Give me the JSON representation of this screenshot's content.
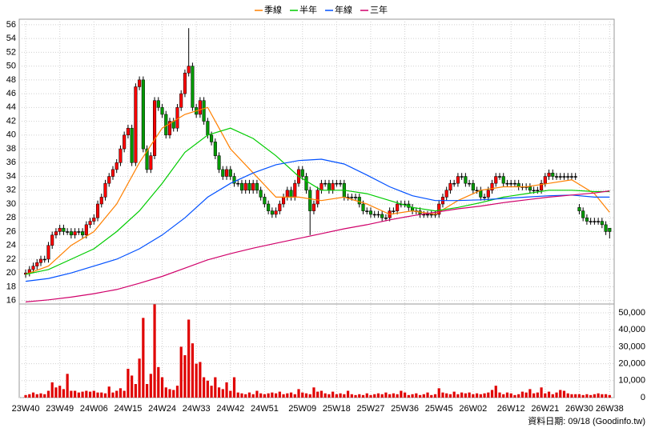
{
  "chart_data": {
    "type": "candlestick",
    "x": [
      0,
      1,
      2,
      3,
      4,
      5,
      6,
      7,
      8,
      9,
      10,
      11,
      12,
      13,
      14,
      15,
      16,
      17,
      18,
      19,
      20,
      21,
      22,
      23,
      24,
      25,
      26,
      27,
      28,
      29,
      30,
      31,
      32,
      33,
      34,
      35,
      36,
      37,
      38,
      39,
      40,
      41,
      42,
      43,
      44,
      45,
      46,
      47,
      48,
      49,
      50,
      51,
      52,
      53,
      54,
      55,
      56,
      57,
      58,
      59,
      60,
      61,
      62,
      63,
      64,
      65,
      66,
      67,
      68,
      69,
      70,
      71,
      72,
      73,
      74,
      75,
      76,
      77,
      78,
      79,
      80,
      81,
      82,
      83,
      84,
      85,
      86,
      87,
      88,
      89,
      90,
      91,
      92,
      93,
      94,
      95,
      96,
      97,
      98,
      99,
      100,
      101,
      102,
      103,
      104,
      105,
      106,
      107,
      108,
      109,
      110,
      111,
      112,
      113,
      114,
      115,
      116,
      117,
      118,
      119,
      120,
      121,
      122,
      123,
      124,
      125,
      126,
      127,
      128,
      129,
      130,
      131,
      132,
      133,
      134,
      135,
      136,
      137,
      138,
      139,
      140,
      141,
      142,
      143,
      144,
      145,
      146,
      147,
      148,
      149,
      150,
      151,
      152,
      153,
      154
    ],
    "open": [
      19.8,
      20,
      20.5,
      21,
      21.5,
      22,
      22,
      24,
      25.5,
      26,
      26.5,
      26,
      26,
      25.5,
      26,
      26,
      25.5,
      27,
      27.5,
      28,
      30,
      31,
      33,
      34,
      35,
      36,
      38,
      40,
      41,
      36,
      47,
      48,
      38,
      35,
      37,
      45,
      44,
      43,
      40,
      42,
      41,
      44,
      46,
      49,
      50,
      44,
      43,
      45,
      42,
      40,
      39,
      37,
      35,
      34,
      35,
      34,
      33,
      33,
      32,
      33,
      32,
      33,
      32,
      31,
      30,
      29,
      28.5,
      29,
      30,
      31,
      32,
      31,
      33,
      35,
      34,
      32,
      29,
      30,
      32,
      33,
      33,
      32,
      33,
      33,
      33,
      31,
      31,
      31,
      31,
      30,
      29,
      29,
      28.5,
      28.5,
      28.5,
      28,
      28,
      29,
      29,
      30,
      30,
      30,
      29.5,
      29,
      29,
      28.5,
      28.5,
      28.5,
      28.5,
      28.5,
      30,
      31,
      32,
      33,
      33,
      34,
      34,
      33,
      33,
      32,
      32,
      31,
      31,
      32,
      33,
      34,
      34,
      33,
      33,
      33,
      33,
      32.5,
      32.5,
      32.5,
      32,
      32,
      32,
      33,
      34,
      34.5,
      34,
      34,
      34,
      34,
      34,
      34,
      29.5,
      29,
      28,
      27.5,
      27.5,
      27.5,
      27.5,
      27,
      26.5
    ],
    "high": [
      20.5,
      21,
      21.5,
      22,
      22.5,
      22.5,
      24.5,
      26,
      26.5,
      27,
      27,
      26.5,
      26.5,
      26.5,
      26.5,
      26.5,
      27.5,
      28,
      28.5,
      30.5,
      31.5,
      33.5,
      34.5,
      35.5,
      36.5,
      38.5,
      40.5,
      41.5,
      41.5,
      47.5,
      48.5,
      48.5,
      38.5,
      37.5,
      45.5,
      45.5,
      44.5,
      43.5,
      42.5,
      42.5,
      44.5,
      46.5,
      49.5,
      55.5,
      50.5,
      44.5,
      45.5,
      45.5,
      42.5,
      40.5,
      39.5,
      37.5,
      35.5,
      35.5,
      35.5,
      34.5,
      33.5,
      33.5,
      33.5,
      33.5,
      33.5,
      33.5,
      32.5,
      31.5,
      30.5,
      29.5,
      29.5,
      30.5,
      31.5,
      32.5,
      32.5,
      33.5,
      35.5,
      35.5,
      34.5,
      32.5,
      30.5,
      32.5,
      33.5,
      33.5,
      33.5,
      33.5,
      33.5,
      33.5,
      33.5,
      31.5,
      31.5,
      31.5,
      31.5,
      30.5,
      29.5,
      29.5,
      29,
      29,
      29,
      28.5,
      29.5,
      29.5,
      30.5,
      30.5,
      30.5,
      30.5,
      30,
      29.5,
      29.5,
      29,
      29,
      29,
      29,
      30.5,
      31.5,
      32.5,
      33.5,
      33.5,
      34.5,
      34.5,
      34.5,
      33.5,
      33.5,
      32.5,
      32.5,
      31.5,
      32.5,
      33.5,
      34.5,
      34.5,
      34.5,
      33.5,
      33.5,
      33.5,
      33.5,
      33,
      33,
      33,
      32.5,
      32.5,
      33.5,
      34.5,
      35,
      35,
      34.5,
      34.5,
      34.5,
      34.5,
      34.5,
      34.5,
      30,
      29.5,
      28.5,
      28,
      28,
      28,
      28,
      27.5,
      26.5
    ],
    "low": [
      19.3,
      19.5,
      20,
      20.5,
      21,
      21.5,
      21.5,
      23.5,
      25,
      25.5,
      25.5,
      25.5,
      25,
      25,
      25.5,
      25,
      25,
      26.5,
      27,
      27.5,
      29.5,
      30.5,
      32.5,
      33.5,
      34.5,
      35.5,
      37.5,
      39.5,
      35.5,
      35.5,
      46.5,
      37.5,
      34.5,
      34.5,
      36.5,
      43.5,
      42.5,
      39.5,
      39.5,
      40.5,
      40.5,
      43.5,
      45.5,
      48.5,
      43.5,
      42.5,
      42.5,
      41.5,
      39.5,
      38.5,
      36.5,
      34.5,
      33.5,
      33.5,
      33.5,
      32.5,
      32.5,
      31.5,
      31.5,
      31.5,
      31.5,
      31.5,
      30.5,
      29.5,
      28.5,
      28,
      28,
      28.5,
      29.5,
      30.5,
      30.5,
      30.5,
      32.5,
      33.5,
      31.5,
      25.5,
      28.5,
      29.5,
      31.5,
      32.5,
      31.5,
      31.5,
      32.5,
      32.5,
      30.5,
      30.5,
      30.5,
      30.5,
      29.5,
      28.5,
      28.5,
      28,
      28,
      28,
      27.5,
      27.5,
      27.5,
      28.5,
      28.5,
      29.5,
      29.5,
      29,
      28.5,
      28.5,
      28,
      28,
      28,
      28,
      28,
      28,
      29.5,
      30.5,
      31.5,
      32.5,
      32.5,
      33.5,
      32.5,
      32.5,
      31.5,
      31.5,
      30.5,
      30.5,
      30.5,
      31.5,
      32.5,
      33.5,
      32.5,
      32.5,
      32.5,
      32.5,
      32,
      32,
      32,
      31.5,
      31.5,
      31.5,
      31.5,
      32.5,
      33.5,
      33.5,
      33.5,
      33.5,
      33.5,
      33.5,
      33.5,
      33.5,
      28.5,
      27.5,
      27,
      27,
      27,
      27,
      26.5,
      25.5,
      25
    ],
    "close": [
      20,
      20.5,
      21,
      21.5,
      22,
      22,
      24,
      25.5,
      26,
      26.5,
      26,
      26,
      25.5,
      26,
      26,
      25.5,
      27,
      27.5,
      28,
      30,
      31,
      33,
      34,
      35,
      36,
      38,
      40,
      41,
      36,
      47,
      48,
      38,
      35,
      37,
      45,
      44,
      43,
      40,
      42,
      41,
      44,
      46,
      49,
      50,
      44,
      43,
      45,
      42,
      40,
      39,
      37,
      35,
      34,
      35,
      34,
      33,
      33,
      32,
      33,
      32,
      33,
      32,
      31,
      30,
      29,
      28.5,
      29,
      30,
      31,
      32,
      31,
      33,
      35,
      34,
      32,
      29,
      30,
      32,
      33,
      33,
      32,
      33,
      33,
      33,
      31,
      31,
      31,
      31,
      30,
      29,
      29,
      28.5,
      28.5,
      28.5,
      28,
      28,
      29,
      29,
      30,
      30,
      30,
      29.5,
      29,
      29,
      28.5,
      28.5,
      28.5,
      28.5,
      28.5,
      30,
      31,
      32,
      33,
      33,
      34,
      34,
      33,
      33,
      32,
      32,
      31,
      31,
      32,
      33,
      34,
      34,
      33,
      33,
      33,
      33,
      32.5,
      32.5,
      32.5,
      32,
      32,
      32,
      33,
      34,
      34.5,
      34,
      34,
      34,
      34,
      34,
      34,
      34,
      29,
      28,
      27.5,
      27.5,
      27.5,
      27.5,
      27,
      26,
      26
    ],
    "up_color": "#ff0000",
    "down_color": "#009900",
    "series": [
      {
        "name": "季線",
        "color": "#ff8000",
        "x": [
          0,
          6,
          12,
          18,
          24,
          30,
          36,
          42,
          48,
          54,
          60,
          66,
          72,
          78,
          84,
          90,
          96,
          102,
          108,
          114,
          120,
          126,
          132,
          138,
          144,
          150,
          154
        ],
        "values": [
          19.8,
          21,
          24,
          26,
          30,
          36,
          41,
          43,
          44,
          38,
          34.5,
          31,
          31,
          30.5,
          31,
          30,
          28.5,
          29,
          28.5,
          30.5,
          32,
          32.5,
          32.5,
          33,
          33.5,
          31.5,
          28.8
        ]
      },
      {
        "name": "半年",
        "color": "#00cc00",
        "x": [
          0,
          6,
          12,
          18,
          24,
          30,
          36,
          42,
          48,
          54,
          60,
          66,
          72,
          78,
          84,
          90,
          96,
          102,
          108,
          114,
          120,
          126,
          132,
          138,
          144,
          150,
          154
        ],
        "values": [
          19.8,
          20.5,
          22,
          23.5,
          26,
          29,
          33,
          37.5,
          40,
          41,
          39.5,
          37,
          34,
          32,
          32,
          31.5,
          30.5,
          29.5,
          29,
          29.5,
          30.2,
          31,
          31.5,
          32,
          32,
          31.8,
          31.8
        ]
      },
      {
        "name": "年線",
        "color": "#0050ff",
        "x": [
          0,
          6,
          12,
          18,
          24,
          30,
          36,
          42,
          48,
          54,
          60,
          66,
          72,
          78,
          84,
          90,
          96,
          102,
          108,
          114,
          120,
          126,
          132,
          138,
          144,
          150,
          154
        ],
        "values": [
          18.8,
          19.2,
          20,
          21,
          22,
          23.5,
          25.5,
          28,
          31,
          33,
          34.5,
          35.7,
          36.3,
          36.5,
          35.8,
          34.2,
          32.5,
          31.2,
          30.5,
          30.5,
          30.6,
          30.8,
          31,
          31.2,
          31.3,
          31,
          31
        ]
      },
      {
        "name": "三年",
        "color": "#d0006a",
        "x": [
          0,
          6,
          12,
          18,
          24,
          30,
          36,
          42,
          48,
          54,
          60,
          66,
          72,
          78,
          84,
          90,
          96,
          102,
          108,
          114,
          120,
          126,
          132,
          138,
          144,
          150,
          154
        ],
        "values": [
          15.8,
          16.1,
          16.5,
          17,
          17.6,
          18.5,
          19.5,
          20.7,
          21.9,
          22.8,
          23.6,
          24.3,
          25,
          25.7,
          26.4,
          27,
          27.7,
          28.3,
          28.8,
          29.3,
          29.7,
          30.2,
          30.6,
          31,
          31.3,
          31.6,
          31.9
        ]
      }
    ],
    "xlim": [
      -1.7,
      155.2
    ],
    "xticks": [
      {
        "value": 0,
        "label": "23W40"
      },
      {
        "value": 9,
        "label": "23W49"
      },
      {
        "value": 18,
        "label": "24W06"
      },
      {
        "value": 27,
        "label": "24W15"
      },
      {
        "value": 36,
        "label": "24W24"
      },
      {
        "value": 45,
        "label": "24W33"
      },
      {
        "value": 54,
        "label": "24W42"
      },
      {
        "value": 63,
        "label": "24W51"
      },
      {
        "value": 73,
        "label": "25W09"
      },
      {
        "value": 82,
        "label": "25W18"
      },
      {
        "value": 91,
        "label": "25W27"
      },
      {
        "value": 100,
        "label": "25W36"
      },
      {
        "value": 109,
        "label": "25W45"
      },
      {
        "value": 118,
        "label": "26W02"
      },
      {
        "value": 128,
        "label": "26W12"
      },
      {
        "value": 137,
        "label": "26W21"
      },
      {
        "value": 146,
        "label": "26W30"
      },
      {
        "value": 154,
        "label": "26W38"
      }
    ],
    "ylim": [
      15.5,
      56.8
    ],
    "yticks": [
      16,
      18,
      20,
      22,
      24,
      26,
      28,
      30,
      32,
      34,
      36,
      38,
      40,
      42,
      44,
      46,
      48,
      50,
      52,
      54,
      56
    ],
    "grid": true,
    "volume": {
      "color": "#e00000",
      "values": [
        1500,
        2000,
        3000,
        2000,
        2500,
        2000,
        4000,
        9000,
        6000,
        7000,
        5000,
        14000,
        4000,
        4000,
        3000,
        3500,
        4000,
        3500,
        4000,
        3000,
        3000,
        2500,
        6500,
        3000,
        4000,
        5500,
        4000,
        17000,
        13000,
        8000,
        23000,
        47000,
        8000,
        14000,
        55000,
        18000,
        12000,
        6000,
        5000,
        4500,
        7000,
        30000,
        25000,
        46000,
        32000,
        20000,
        21000,
        12000,
        10000,
        7000,
        12000,
        6000,
        5000,
        9000,
        4000,
        12000,
        3000,
        2500,
        2000,
        3000,
        2000,
        4000,
        2500,
        2000,
        2500,
        3000,
        2500,
        3500,
        2000,
        2500,
        3000,
        2000,
        5000,
        3000,
        2500,
        2000,
        6000,
        3500,
        4000,
        2500,
        2000,
        3500,
        2000,
        2500,
        2000,
        4000,
        2000,
        1500,
        2000,
        1500,
        2500,
        1500,
        2000,
        2500,
        2000,
        3000,
        2000,
        2500,
        2000,
        4000,
        3000,
        1500,
        2000,
        2500,
        1500,
        2000,
        3000,
        1500,
        2000,
        5500,
        3000,
        2500,
        2000,
        3500,
        2000,
        3000,
        2500,
        3000,
        2000,
        2500,
        2000,
        2500,
        3000,
        4500,
        7000,
        3000,
        2000,
        3000,
        2500,
        1500,
        2000,
        3500,
        3000,
        5000,
        2500,
        3000,
        6000,
        2500,
        3500,
        2000,
        3000,
        4500,
        4000,
        2500,
        2000,
        2000,
        2000,
        1500,
        2000,
        1500,
        2000,
        2500,
        2000,
        2000,
        1500
      ],
      "ylim": [
        0,
        55200
      ],
      "yticks": [
        0,
        {
          "value": 10000,
          "label": "10,000"
        },
        {
          "value": 20000,
          "label": "20,000"
        },
        {
          "value": 30000,
          "label": "30,000"
        },
        {
          "value": 40000,
          "label": "40,000"
        },
        {
          "value": 50000,
          "label": "50,000"
        }
      ]
    },
    "footnote": "資料日期: 09/18 (Goodinfo.tw)"
  }
}
